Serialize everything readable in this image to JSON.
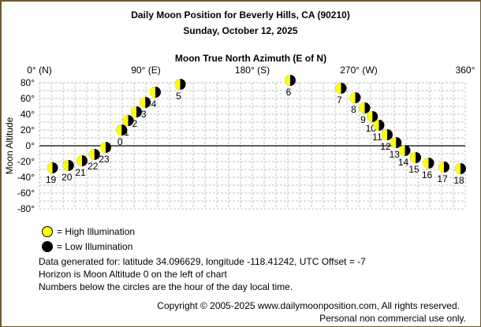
{
  "chart_data": {
    "type": "scatter",
    "title": "Daily Moon Position for Beverly Hills, CA (90210)",
    "subtitle": "Sunday, October 12, 2025",
    "xlabel": "Moon True North Azimuth (E of N)",
    "ylabel": "Moon Altitude",
    "xlim": [
      0,
      360
    ],
    "ylim": [
      -80,
      80
    ],
    "grid": true,
    "x_ticks": [
      {
        "value": 0,
        "label": "0° (N)"
      },
      {
        "value": 90,
        "label": "90° (E)"
      },
      {
        "value": 180,
        "label": "180° (S)"
      },
      {
        "value": 270,
        "label": "270° (W)"
      },
      {
        "value": 360,
        "label": "360°"
      }
    ],
    "y_ticks": [
      {
        "value": 80,
        "label": "80°"
      },
      {
        "value": 60,
        "label": "60°"
      },
      {
        "value": 40,
        "label": "40°"
      },
      {
        "value": 20,
        "label": "20°"
      },
      {
        "value": 0,
        "label": "0°"
      },
      {
        "value": -20,
        "label": "-20°"
      },
      {
        "value": -40,
        "label": "-40°"
      },
      {
        "value": -60,
        "label": "-60°"
      },
      {
        "value": -80,
        "label": "-80°"
      }
    ],
    "points": [
      {
        "hour": "0",
        "azimuth": 69.5,
        "altitude": 20
      },
      {
        "hour": "1",
        "azimuth": 75,
        "altitude": 32
      },
      {
        "hour": "2",
        "azimuth": 82,
        "altitude": 43
      },
      {
        "hour": "3",
        "azimuth": 89.5,
        "altitude": 55
      },
      {
        "hour": "4",
        "azimuth": 98,
        "altitude": 68
      },
      {
        "hour": "5",
        "azimuth": 119,
        "altitude": 78
      },
      {
        "hour": "6",
        "azimuth": 212,
        "altitude": 83
      },
      {
        "hour": "7",
        "azimuth": 255,
        "altitude": 73
      },
      {
        "hour": "8",
        "azimuth": 267,
        "altitude": 61
      },
      {
        "hour": "9",
        "azimuth": 275,
        "altitude": 48
      },
      {
        "hour": "10",
        "azimuth": 281.5,
        "altitude": 37
      },
      {
        "hour": "11",
        "azimuth": 287,
        "altitude": 26
      },
      {
        "hour": "12",
        "azimuth": 294,
        "altitude": 14
      },
      {
        "hour": "13",
        "azimuth": 301.5,
        "altitude": 4
      },
      {
        "hour": "14",
        "azimuth": 309,
        "altitude": -6
      },
      {
        "hour": "15",
        "azimuth": 318,
        "altitude": -15
      },
      {
        "hour": "16",
        "azimuth": 329,
        "altitude": -22
      },
      {
        "hour": "17",
        "azimuth": 342,
        "altitude": -27
      },
      {
        "hour": "18",
        "azimuth": 356,
        "altitude": -29
      },
      {
        "hour": "19",
        "azimuth": 11,
        "altitude": -28
      },
      {
        "hour": "20",
        "azimuth": 24.5,
        "altitude": -25
      },
      {
        "hour": "21",
        "azimuth": 36,
        "altitude": -19
      },
      {
        "hour": "22",
        "azimuth": 46.5,
        "altitude": -11
      },
      {
        "hour": "23",
        "azimuth": 56,
        "altitude": -2
      }
    ],
    "colors": {
      "high_illumination": "#ffff00",
      "low_illumination": "#000000",
      "grid": "#c0c0c0",
      "horizon": "#000000",
      "frame": "#6b5a35"
    }
  },
  "legend": [
    {
      "label": "= High Illumination",
      "color": "#ffff00"
    },
    {
      "label": "= Low Illumination",
      "color": "#000000"
    }
  ],
  "notes": [
    "Data generated for: latitude 34.096629, longitude -118.41242, UTC Offset = -7",
    "Horizon is Moon Altitude 0 on the left of chart",
    "Numbers below the circles are the hour of the day local time."
  ],
  "copyright": "Copyright © 2005-2025 www.dailymoonposition.com, All rights reserved.",
  "usage": "Personal non commercial use only."
}
